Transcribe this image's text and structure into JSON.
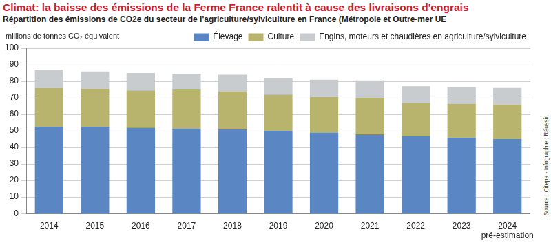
{
  "chart_data": {
    "type": "bar",
    "title": "Climat: la baisse des émissions de la Ferme France ralentit à cause des livraisons d'engrais",
    "subtitle": "Répartition des émissions de CO2e du secteur de l'agriculture/sylviculture en France (Métropole et Outre-mer UE",
    "y_label": "millions de tonnes CO₂ équivalent",
    "source": "Source : Citepa - Infographie : Réussir.",
    "categories": [
      "2014",
      "2015",
      "2016",
      "2017",
      "2018",
      "2019",
      "2020",
      "2021",
      "2022",
      "2023",
      "2024"
    ],
    "annotations": [
      {
        "category": "2024",
        "text": "pré-estimation"
      }
    ],
    "series": [
      {
        "name": "Élevage",
        "color": "#5b86c4",
        "values": [
          52.5,
          52.5,
          52,
          51.5,
          51,
          50,
          49,
          48,
          47,
          46,
          45
        ]
      },
      {
        "name": "Culture",
        "color": "#b8b46d",
        "values": [
          23.5,
          23,
          22.5,
          23.5,
          23,
          22,
          21.5,
          22,
          20,
          20.5,
          21
        ]
      },
      {
        "name": "Engins, moteurs et chaudières en agriculture/sylviculture",
        "color": "#c8ccce",
        "values": [
          11,
          10.5,
          10.5,
          9.5,
          10,
          10,
          10.5,
          10.5,
          10,
          10,
          10
        ]
      }
    ],
    "ylim": [
      0,
      100
    ],
    "yticks": [
      0,
      10,
      20,
      30,
      40,
      50,
      60,
      70,
      80,
      90,
      100
    ],
    "grid": true,
    "stacked": true,
    "legend": "top-right"
  }
}
